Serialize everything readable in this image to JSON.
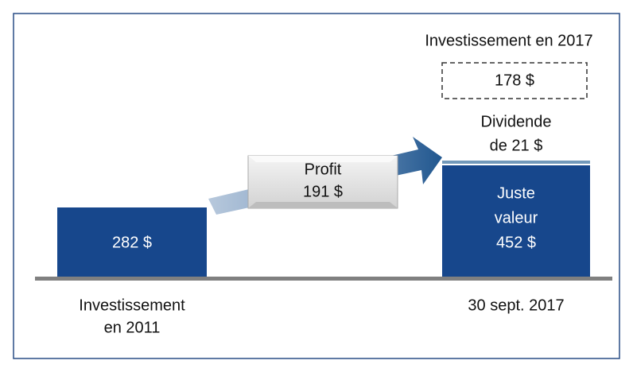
{
  "start": {
    "value": "282 $",
    "label": [
      "Investissement",
      "en 2011"
    ]
  },
  "profit": {
    "label": "Profit",
    "value": "191 $"
  },
  "end": {
    "value": [
      "Juste",
      "valeur",
      "452 $"
    ],
    "label": "30 sept. 2017"
  },
  "dividend": [
    "Dividende",
    "de 21 $"
  ],
  "investment2017": {
    "label": "Investissement en 2017",
    "value": "178 $"
  }
}
